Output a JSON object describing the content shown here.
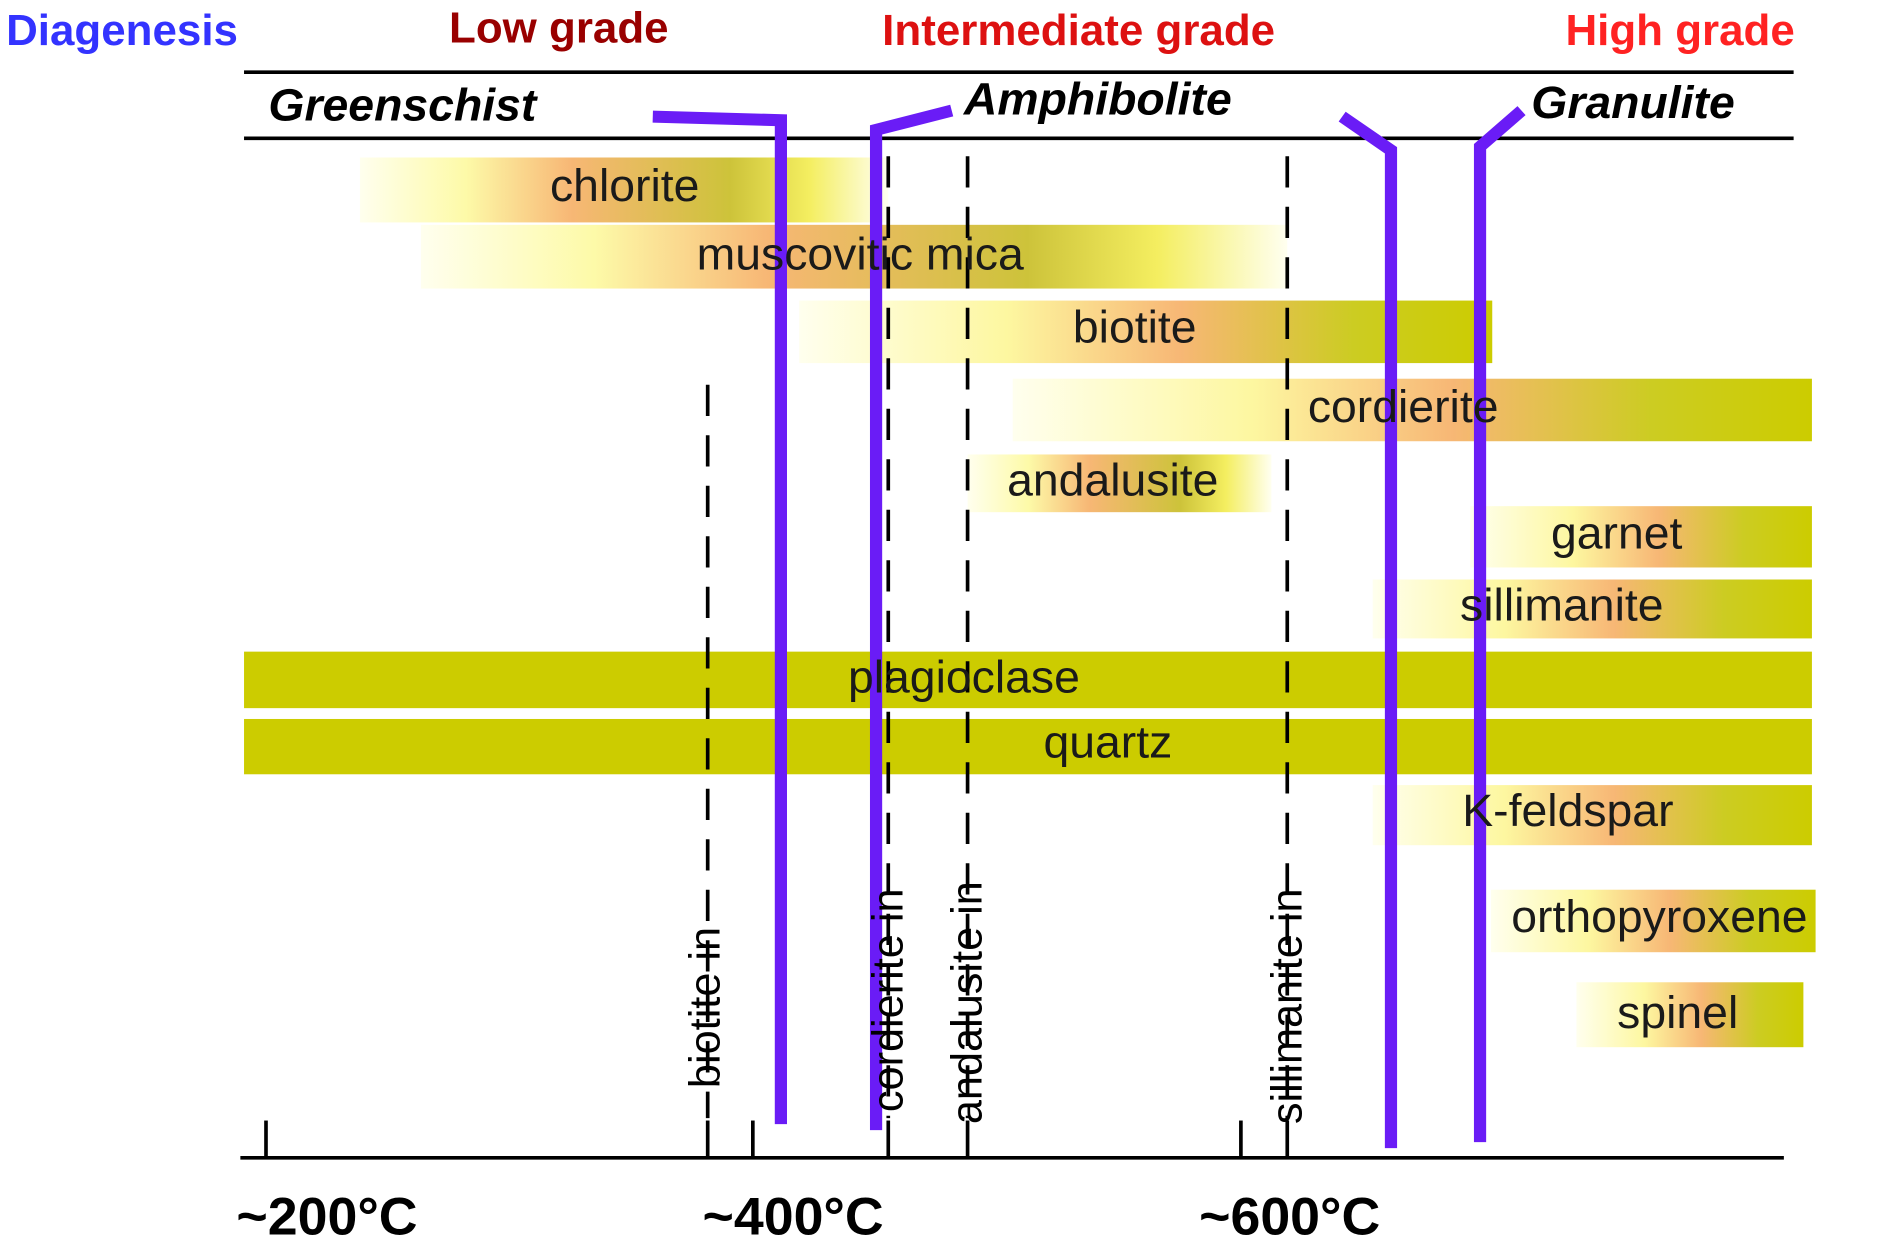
{
  "header": {
    "diagenesis": "Diagenesis",
    "low": "Low grade",
    "intermediate": "Intermediate grade",
    "high": "High grade"
  },
  "facies": [
    "Greenschist",
    "Amphibolite",
    "Granulite"
  ],
  "minerals": [
    "chlorite",
    "muscovitic mica",
    "biotite",
    "cordierite",
    "andalusite",
    "garnet",
    "sillimanite",
    "plagioclase",
    "quartz",
    "K-feldspar",
    "orthopyroxene",
    "spinel"
  ],
  "isograds": [
    "biotite in",
    "cordierite in",
    "andalusite in",
    "sillimanite in"
  ],
  "temperatures": [
    "~200°C",
    "~400°C",
    "~600°C"
  ]
}
